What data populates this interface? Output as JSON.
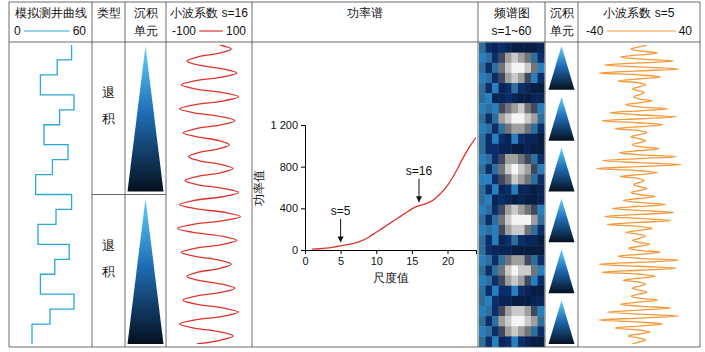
{
  "chart_data": [
    {
      "type": "line",
      "title": "模拟测井曲线",
      "color": "#2aa6d8",
      "x": [
        0,
        15,
        15,
        30,
        30,
        50,
        50,
        65,
        65,
        80,
        80,
        100,
        100,
        115,
        115,
        130,
        130,
        150,
        150,
        165,
        165,
        180,
        180,
        200,
        200,
        215,
        215,
        230,
        230,
        250,
        250,
        265,
        265,
        280,
        280,
        300
      ],
      "values": [
        48,
        48,
        36,
        36,
        22,
        22,
        50,
        50,
        38,
        38,
        25,
        25,
        45,
        45,
        32,
        32,
        18,
        18,
        48,
        48,
        35,
        35,
        20,
        20,
        46,
        46,
        34,
        34,
        22,
        22,
        50,
        50,
        30,
        30,
        15,
        15
      ],
      "xlim": [
        0,
        300
      ],
      "ylim": [
        0,
        60
      ],
      "yticks": [
        0,
        60
      ],
      "tick_labels": "y"
    },
    {
      "type": "line",
      "title": "小波系数 s=16",
      "color": "#e0322b",
      "x": [
        0,
        4,
        8,
        12,
        16,
        20,
        24,
        28,
        32,
        36,
        40,
        44,
        48,
        52,
        56,
        60,
        64,
        68,
        72,
        76,
        80,
        84,
        88,
        92,
        96,
        100,
        104,
        108,
        112,
        116,
        120,
        124,
        128,
        132,
        136,
        140,
        144,
        148,
        152,
        156,
        160,
        164,
        168,
        172,
        176,
        180,
        184,
        188,
        192,
        196,
        200,
        204,
        208,
        212,
        216,
        220,
        224,
        228,
        232,
        236,
        240,
        244,
        248,
        252,
        256,
        260,
        264,
        268,
        272,
        276,
        280,
        284,
        288,
        292,
        296,
        300
      ],
      "values": [
        30,
        60,
        30,
        -30,
        -60,
        -30,
        38,
        75,
        38,
        -38,
        -75,
        -38,
        40,
        80,
        40,
        -40,
        -80,
        -40,
        35,
        70,
        35,
        -35,
        -70,
        -35,
        28,
        55,
        28,
        -28,
        -55,
        -28,
        33,
        65,
        33,
        -33,
        -65,
        -33,
        40,
        80,
        40,
        -40,
        -80,
        -40,
        43,
        85,
        43,
        -43,
        -85,
        -43,
        38,
        75,
        38,
        -38,
        -75,
        -38,
        30,
        60,
        30,
        -30,
        -60,
        -30,
        35,
        70,
        35,
        -35,
        -70,
        -35,
        40,
        80,
        40,
        -40,
        -80,
        -40,
        33,
        65,
        33,
        -33
      ],
      "xlim": [
        0,
        300
      ],
      "ylim": [
        -100,
        100
      ],
      "yticks": [
        -100,
        100
      ],
      "tick_labels": "y"
    },
    {
      "type": "line",
      "title": "功率谱",
      "color": "#e0322b",
      "xlabel": "尺度值",
      "ylabel": "功率值",
      "x": [
        1,
        2,
        3,
        4,
        5,
        6,
        7,
        8,
        9,
        10,
        11,
        12,
        13,
        14,
        15,
        16,
        17,
        18,
        19,
        20,
        21,
        22,
        23,
        24
      ],
      "values": [
        8,
        12,
        18,
        28,
        40,
        52,
        65,
        90,
        125,
        170,
        215,
        260,
        305,
        350,
        395,
        425,
        445,
        480,
        540,
        620,
        730,
        860,
        980,
        1080
      ],
      "xlim": [
        0,
        24
      ],
      "ylim": [
        0,
        1200
      ],
      "xticks": [
        0,
        5,
        10,
        15,
        20
      ],
      "yticks": [
        0,
        400,
        800,
        {
          "value": 1200,
          "label": "1 200"
        }
      ],
      "annotations": [
        {
          "text": "s=5",
          "x": 5
        },
        {
          "text": "s=16",
          "x": 16
        }
      ]
    },
    {
      "type": "heatmap",
      "title": "频谱图",
      "subtitle": "s=1~60",
      "cells": [
        [
          0.5,
          0.3,
          0.2,
          0.3,
          0.2,
          0.1,
          0.1,
          0.1,
          0.1,
          0.2
        ],
        [
          0.4,
          0.5,
          0.3,
          0.6,
          0.8,
          0.9,
          0.8,
          0.7,
          0.5,
          0.3
        ],
        [
          0.5,
          0.3,
          0.5,
          0.7,
          0.9,
          1.0,
          1.0,
          0.9,
          0.7,
          0.4
        ],
        [
          0.4,
          0.5,
          0.3,
          0.6,
          0.8,
          0.9,
          0.8,
          0.6,
          0.4,
          0.3
        ],
        [
          0.5,
          0.3,
          0.4,
          0.2,
          0.3,
          0.5,
          0.3,
          0.2,
          0.1,
          0.1
        ],
        [
          0.5,
          0.4,
          0.2,
          0.2,
          0.3,
          0.2,
          0.1,
          0.1,
          0.2,
          0.2
        ],
        [
          0.4,
          0.5,
          0.4,
          0.6,
          0.7,
          0.8,
          0.9,
          0.7,
          0.6,
          0.4
        ],
        [
          0.5,
          0.3,
          0.5,
          0.8,
          0.9,
          1.0,
          1.0,
          0.9,
          0.8,
          0.5
        ],
        [
          0.4,
          0.5,
          0.3,
          0.5,
          0.7,
          0.8,
          0.8,
          0.7,
          0.5,
          0.3
        ],
        [
          0.5,
          0.3,
          0.4,
          0.3,
          0.2,
          0.4,
          0.3,
          0.2,
          0.2,
          0.1
        ],
        [
          0.5,
          0.3,
          0.3,
          0.2,
          0.2,
          0.1,
          0.1,
          0.2,
          0.1,
          0.1
        ],
        [
          0.4,
          0.5,
          0.3,
          0.6,
          0.8,
          0.8,
          0.7,
          0.6,
          0.5,
          0.3
        ],
        [
          0.5,
          0.3,
          0.5,
          0.7,
          0.9,
          1.0,
          0.9,
          0.8,
          0.6,
          0.4
        ],
        [
          0.4,
          0.4,
          0.3,
          0.6,
          0.7,
          0.9,
          0.8,
          0.7,
          0.5,
          0.3
        ],
        [
          0.5,
          0.3,
          0.4,
          0.2,
          0.3,
          0.4,
          0.2,
          0.2,
          0.1,
          0.2
        ],
        [
          0.5,
          0.4,
          0.2,
          0.3,
          0.2,
          0.1,
          0.2,
          0.1,
          0.1,
          0.2
        ],
        [
          0.4,
          0.5,
          0.3,
          0.6,
          0.8,
          0.9,
          0.8,
          0.7,
          0.6,
          0.4
        ],
        [
          0.5,
          0.3,
          0.5,
          0.7,
          0.9,
          1.0,
          1.0,
          1.0,
          0.8,
          0.5
        ],
        [
          0.4,
          0.5,
          0.4,
          0.6,
          0.8,
          0.9,
          0.9,
          0.7,
          0.5,
          0.3
        ],
        [
          0.5,
          0.3,
          0.4,
          0.2,
          0.3,
          0.5,
          0.3,
          0.2,
          0.2,
          0.1
        ],
        [
          0.5,
          0.3,
          0.2,
          0.2,
          0.2,
          0.1,
          0.1,
          0.1,
          0.1,
          0.1
        ],
        [
          0.4,
          0.5,
          0.3,
          0.5,
          0.7,
          0.8,
          0.8,
          0.6,
          0.5,
          0.3
        ],
        [
          0.5,
          0.3,
          0.5,
          0.7,
          0.9,
          1.0,
          0.9,
          0.9,
          0.7,
          0.4
        ],
        [
          0.4,
          0.5,
          0.3,
          0.6,
          0.8,
          0.9,
          0.8,
          0.6,
          0.4,
          0.3
        ],
        [
          0.5,
          0.3,
          0.4,
          0.3,
          0.3,
          0.4,
          0.3,
          0.2,
          0.1,
          0.1
        ],
        [
          0.5,
          0.4,
          0.3,
          0.2,
          0.2,
          0.1,
          0.1,
          0.1,
          0.2,
          0.2
        ],
        [
          0.4,
          0.5,
          0.3,
          0.6,
          0.8,
          0.9,
          0.9,
          0.8,
          0.6,
          0.4
        ],
        [
          0.5,
          0.3,
          0.5,
          0.8,
          0.9,
          1.0,
          1.0,
          0.9,
          0.8,
          0.5
        ],
        [
          0.4,
          0.5,
          0.3,
          0.6,
          0.8,
          0.9,
          0.8,
          0.7,
          0.5,
          0.3
        ],
        [
          0.5,
          0.3,
          0.4,
          0.2,
          0.3,
          0.4,
          0.3,
          0.2,
          0.1,
          0.1
        ]
      ]
    },
    {
      "type": "line",
      "title": "小波系数 s=5",
      "color": "#f39a3c",
      "x": [
        0,
        2,
        4,
        6,
        8,
        10,
        12,
        14,
        16,
        18,
        20,
        22,
        24,
        26,
        28,
        30,
        32,
        34,
        36,
        38,
        40,
        42,
        44,
        46,
        48,
        50,
        52,
        54,
        56,
        58,
        60,
        62,
        64,
        66,
        68,
        70,
        72,
        74,
        76,
        78,
        80,
        82,
        84,
        86,
        88,
        90,
        92,
        94,
        96,
        98,
        100,
        102,
        104,
        106,
        108,
        110,
        112,
        114,
        116,
        118,
        120,
        122,
        124,
        126,
        128,
        130,
        132,
        134,
        136,
        138,
        140,
        142,
        144,
        146,
        148,
        150,
        152,
        154,
        156,
        158,
        160,
        162,
        164,
        166,
        168,
        170,
        172,
        174,
        176,
        178,
        180,
        182,
        184,
        186,
        188,
        190,
        192,
        194,
        196,
        198,
        200,
        202,
        204,
        206,
        208,
        210,
        212,
        214,
        216,
        218,
        220,
        222,
        224,
        226,
        228,
        230,
        232,
        234,
        236,
        238,
        240,
        242,
        244,
        246,
        248,
        250,
        252,
        254,
        256,
        258,
        260,
        262,
        264,
        266,
        268,
        270,
        272,
        274,
        276,
        278,
        280,
        282,
        284,
        286,
        288,
        290,
        292,
        294,
        296,
        298,
        300
      ],
      "values": [
        6,
        0,
        -6,
        0,
        14,
        0,
        -14,
        0,
        26,
        0,
        -26,
        0,
        30,
        0,
        -30,
        0,
        16,
        0,
        -16,
        0,
        5,
        0,
        -5,
        0,
        4,
        0,
        -4,
        0,
        10,
        0,
        -10,
        0,
        22,
        0,
        -22,
        0,
        28,
        0,
        -28,
        0,
        18,
        0,
        -18,
        0,
        6,
        0,
        -6,
        0,
        5,
        0,
        -5,
        0,
        15,
        0,
        -15,
        0,
        28,
        0,
        -28,
        0,
        32,
        0,
        -32,
        0,
        14,
        0,
        -14,
        0,
        4,
        0,
        -4,
        0,
        6,
        0,
        -6,
        0,
        12,
        0,
        -12,
        0,
        20,
        0,
        -20,
        0,
        26,
        0,
        -26,
        0,
        24,
        0,
        -24,
        0,
        10,
        0,
        -10,
        0,
        5,
        0,
        -5,
        0,
        8,
        0,
        -8,
        0,
        16,
        0,
        -16,
        0,
        30,
        0,
        -30,
        0,
        28,
        0,
        -28,
        0,
        12,
        0,
        -12,
        0,
        5,
        0,
        -5,
        0,
        6,
        0,
        -6,
        0,
        14,
        0,
        -14,
        0,
        24,
        0,
        -24,
        0,
        30,
        0,
        -30,
        0,
        18,
        0,
        -18,
        0,
        8,
        0,
        -8,
        0,
        5,
        0,
        -5
      ],
      "xlim": [
        0,
        300
      ],
      "ylim": [
        -40,
        40
      ],
      "yticks": [
        -40,
        40
      ],
      "tick_labels": "y"
    }
  ],
  "type_column": {
    "title": "类型",
    "rows": [
      "退积",
      "退积"
    ]
  },
  "unit_columns": [
    "沉积单元",
    "沉积单元"
  ]
}
